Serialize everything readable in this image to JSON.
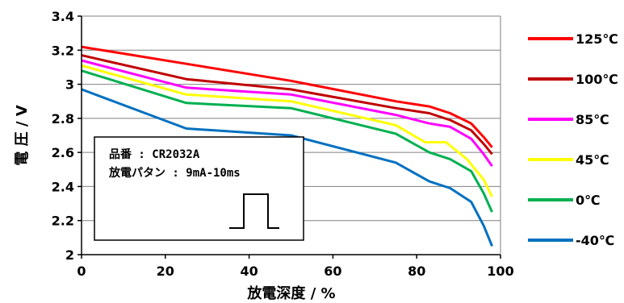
{
  "chart_data": {
    "type": "line",
    "title": "",
    "xlabel": "放電深度 / %",
    "ylabel": "電 圧 / V",
    "xlim": [
      0,
      100
    ],
    "ylim": [
      2,
      3.4
    ],
    "xticks": [
      0,
      20,
      40,
      60,
      80,
      100
    ],
    "yticks": [
      2,
      2.2,
      2.4,
      2.6,
      2.8,
      3,
      3.2,
      3.4
    ],
    "ytick_labels": [
      "2",
      "2.2",
      "2.4",
      "2.6",
      "2.8",
      "3",
      "3.2",
      "3.4"
    ],
    "grid": "horizontal",
    "legend_position": "right",
    "annotation": {
      "line1": "品番 : CR2032A",
      "line2": "放電パタン : 9mA-10ms"
    },
    "series": [
      {
        "name": "125℃",
        "color": "#ff0000",
        "x": [
          0,
          25,
          50,
          75,
          83,
          88,
          93,
          96,
          98
        ],
        "y": [
          3.22,
          3.12,
          3.02,
          2.9,
          2.87,
          2.83,
          2.77,
          2.69,
          2.63
        ]
      },
      {
        "name": "100℃",
        "color": "#c00000",
        "x": [
          0,
          25,
          50,
          75,
          83,
          88,
          93,
          96,
          98
        ],
        "y": [
          3.17,
          3.03,
          2.97,
          2.86,
          2.83,
          2.79,
          2.73,
          2.65,
          2.59
        ]
      },
      {
        "name": "85℃",
        "color": "#ff00ff",
        "x": [
          0,
          25,
          50,
          75,
          83,
          88,
          93,
          96,
          98
        ],
        "y": [
          3.14,
          2.98,
          2.94,
          2.82,
          2.77,
          2.75,
          2.68,
          2.59,
          2.52
        ]
      },
      {
        "name": "45℃",
        "color": "#ffff00",
        "x": [
          0,
          25,
          50,
          75,
          82,
          87,
          92,
          96,
          98
        ],
        "y": [
          3.11,
          2.94,
          2.9,
          2.76,
          2.66,
          2.66,
          2.56,
          2.44,
          2.34
        ]
      },
      {
        "name": "0℃",
        "color": "#00b050",
        "x": [
          0,
          25,
          50,
          75,
          83,
          88,
          93,
          96,
          98
        ],
        "y": [
          3.08,
          2.89,
          2.86,
          2.71,
          2.6,
          2.56,
          2.49,
          2.36,
          2.25
        ]
      },
      {
        "name": "-40℃",
        "color": "#0070c0",
        "x": [
          0,
          25,
          50,
          75,
          83,
          88,
          93,
          96,
          98
        ],
        "y": [
          2.97,
          2.74,
          2.7,
          2.54,
          2.43,
          2.39,
          2.31,
          2.17,
          2.05
        ]
      }
    ]
  }
}
